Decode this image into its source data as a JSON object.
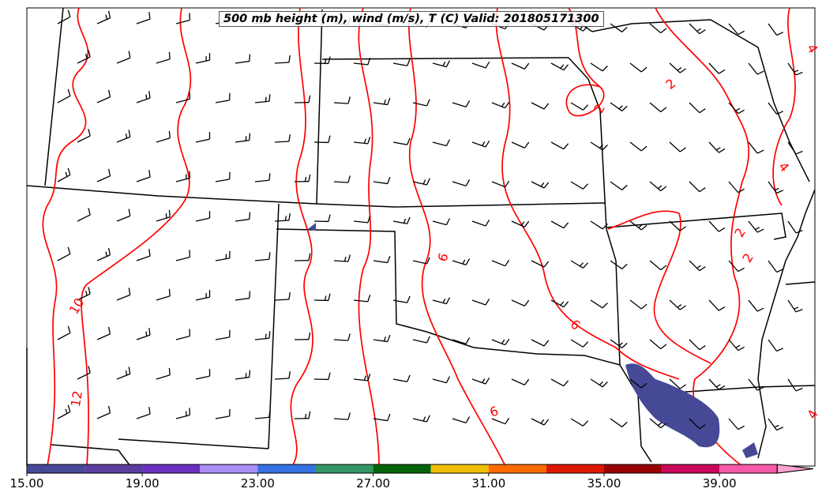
{
  "title": "500 mb height (m), wind (m/s), T (C) Valid: 201805171300",
  "colorbar": {
    "min": 15,
    "max": 41,
    "step": 2,
    "tick_labels": [
      "15.00",
      "19.00",
      "23.00",
      "27.00",
      "31.00",
      "35.00",
      "39.00"
    ],
    "tick_values": [
      15,
      19,
      23,
      27,
      31,
      35,
      39
    ],
    "colors": [
      "#464996",
      "#5a3d9c",
      "#6a2fc0",
      "#a98ef8",
      "#3571e3",
      "#339666",
      "#05640a",
      "#f0be00",
      "#ff6a00",
      "#dc1900",
      "#990000",
      "#c8065a",
      "#f659a8"
    ],
    "extend_color": "#f9a3cf"
  },
  "contour_labels": [
    {
      "text": "2",
      "value": 2
    },
    {
      "text": "2",
      "value": 2
    },
    {
      "text": "2",
      "value": 2
    },
    {
      "text": "2",
      "value": 2
    },
    {
      "text": "4",
      "value": 4
    },
    {
      "text": "4",
      "value": 4
    },
    {
      "text": "4",
      "value": 4
    },
    {
      "text": "6",
      "value": 6
    },
    {
      "text": "6",
      "value": 6
    },
    {
      "text": "6",
      "value": 6
    },
    {
      "text": "10",
      "value": 10
    },
    {
      "text": "12",
      "value": 12
    }
  ],
  "colors": {
    "temperature_contour": "#ff0000",
    "border": "#000000",
    "shading": "#464996"
  }
}
